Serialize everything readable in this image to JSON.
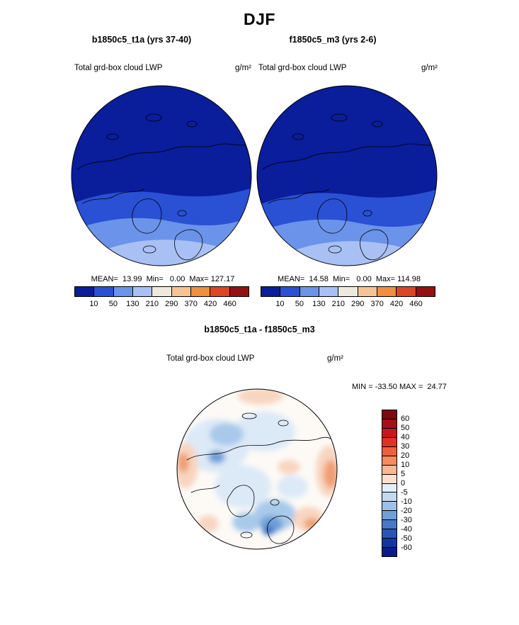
{
  "page_title": "DJF",
  "left_panel": {
    "title": "b1850c5_t1a (yrs 37-40)",
    "field_label": "Total grd-box cloud LWP",
    "units": "g/m²",
    "stats": "MEAN=  13.99  Min=   0.00  Max= 127.17"
  },
  "right_panel": {
    "title": "f1850c5_m3 (yrs 2-6)",
    "field_label": "Total grd-box cloud LWP",
    "units": "g/m²",
    "stats": "MEAN=  14.58  Min=   0.00  Max= 114.98"
  },
  "diff_panel": {
    "title": "b1850c5_t1a - f1850c5_m3",
    "field_label": "Total grd-box cloud LWP",
    "units": "g/m²",
    "minmax": "MIN = -33.50 MAX =  24.77"
  },
  "lwp_colorbar": {
    "ticks": [
      "10",
      "50",
      "130",
      "210",
      "290",
      "370",
      "420",
      "460"
    ],
    "colors": [
      "#0a1d9b",
      "#2a50d4",
      "#6b93ea",
      "#a9c0f4",
      "#efe9dd",
      "#f6c494",
      "#ef8f3f",
      "#dc4524",
      "#931111"
    ]
  },
  "diff_colorbar": {
    "ticks": [
      "60",
      "50",
      "40",
      "30",
      "20",
      "10",
      "5",
      "0",
      "-5",
      "-10",
      "-20",
      "-30",
      "-40",
      "-50",
      "-60"
    ],
    "colors": [
      "#7a0a10",
      "#a50f15",
      "#c7161d",
      "#e03127",
      "#ef5f3c",
      "#f68a60",
      "#fbb695",
      "#fde0cd",
      "#e4eefa",
      "#c3d9f0",
      "#9cc0e8",
      "#6e9fd8",
      "#4679c8",
      "#2a55b8",
      "#1535a0",
      "#0a1d86"
    ],
    "title_note": "MIN = -33.50 MAX =  24.77"
  },
  "palette": {
    "cb1": "#0a1d9b",
    "cb2": "#2a50d4",
    "cb3": "#6b93ea",
    "cb4": "#a9c0f4",
    "d_zero": "#fdfaf6",
    "d_pos1": "#f8d5c0",
    "d_pos2": "#f09e72",
    "d_pos3": "#d9603a",
    "d_neg1": "#dce9f7",
    "d_neg2": "#a8c9ea",
    "d_neg3": "#6e9fd8",
    "d_neg4": "#3a6cc4"
  },
  "chart_data": [
    {
      "type": "heatmap",
      "subtype": "polar-stereographic-map",
      "projection": "north-polar-stereographic",
      "season": "DJF",
      "run": "b1850c5_t1a (yrs 37-40)",
      "variable": "Total grd-box cloud LWP",
      "units": "g/m^2",
      "mean": 13.99,
      "min": 0.0,
      "max": 127.17,
      "contour_levels": [
        10,
        50,
        130,
        210,
        290,
        370,
        420,
        460
      ],
      "colors": [
        "#0a1d9b",
        "#2a50d4",
        "#6b93ea",
        "#a9c0f4",
        "#efe9dd",
        "#f6c494",
        "#ef8f3f",
        "#dc4524",
        "#931111"
      ],
      "legend_position": "bottom",
      "description": "Arctic field dominated by low LWP (10-50 g/m^2, dark blue); higher values (50-210, lighter blues) over North Atlantic sector at lower-latitude edge"
    },
    {
      "type": "heatmap",
      "subtype": "polar-stereographic-map",
      "projection": "north-polar-stereographic",
      "season": "DJF",
      "run": "f1850c5_m3 (yrs 2-6)",
      "variable": "Total grd-box cloud LWP",
      "units": "g/m^2",
      "mean": 14.58,
      "min": 0.0,
      "max": 114.98,
      "contour_levels": [
        10,
        50,
        130,
        210,
        290,
        370,
        420,
        460
      ],
      "colors": [
        "#0a1d9b",
        "#2a50d4",
        "#6b93ea",
        "#a9c0f4",
        "#efe9dd",
        "#f6c494",
        "#ef8f3f",
        "#dc4524",
        "#931111"
      ],
      "legend_position": "bottom",
      "description": "Nearly identical pattern to b1850c5_t1a: low LWP over central Arctic, elevated values over North Atlantic sector"
    },
    {
      "type": "heatmap",
      "subtype": "polar-stereographic-map",
      "projection": "north-polar-stereographic",
      "season": "DJF",
      "run": "b1850c5_t1a - f1850c5_m3",
      "variable": "Total grd-box cloud LWP",
      "units": "g/m^2",
      "min": -33.5,
      "max": 24.77,
      "contour_levels": [
        60,
        50,
        40,
        30,
        20,
        10,
        5,
        0,
        -5,
        -10,
        -20,
        -30,
        -40,
        -50,
        -60
      ],
      "colors": [
        "#7a0a10",
        "#a50f15",
        "#c7161d",
        "#e03127",
        "#ef5f3c",
        "#f68a60",
        "#fbb695",
        "#fde0cd",
        "#e4eefa",
        "#c3d9f0",
        "#9cc0e8",
        "#6e9fd8",
        "#4679c8",
        "#2a55b8",
        "#1535a0",
        "#0a1d86"
      ],
      "legend_position": "right",
      "description": "Difference map mostly near zero (white); negative anomalies (light-to-mid blue, to -30) over central Arctic and Nordic seas; positive anomalies (pink/orange, to +25) near lower-latitude edges"
    }
  ]
}
